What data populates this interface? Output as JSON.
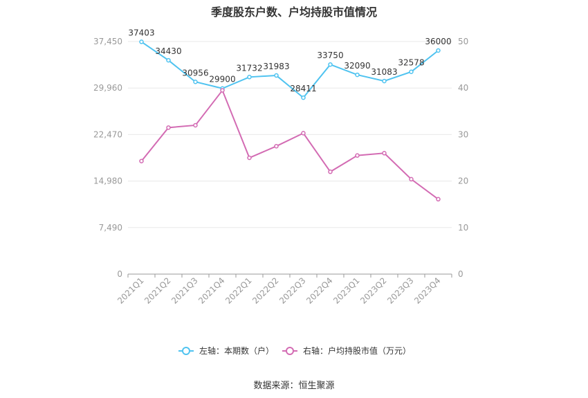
{
  "title": "季度股东户数、户均持股市值情况",
  "source": "数据来源：恒生聚源",
  "colors": {
    "left_series": "#4fc3f0",
    "right_series": "#d36bb3",
    "grid": "#e8e8e8",
    "axis_text": "#999999"
  },
  "chart_data": {
    "type": "line",
    "categories": [
      "2021Q1",
      "2021Q2",
      "2021Q3",
      "2021Q4",
      "2022Q1",
      "2022Q2",
      "2022Q3",
      "2022Q4",
      "2023Q1",
      "2023Q2",
      "2023Q3",
      "2023Q4"
    ],
    "y_left": {
      "ylim": [
        0,
        37450
      ],
      "ticks": [
        0,
        7490,
        14980,
        22470,
        29960,
        37450
      ],
      "tick_labels": [
        "0",
        "7,490",
        "14,980",
        "22,470",
        "29,960",
        "37,450"
      ]
    },
    "y_right": {
      "ylim": [
        0,
        50
      ],
      "ticks": [
        0,
        10,
        20,
        30,
        40,
        50
      ],
      "tick_labels": [
        "0",
        "10",
        "20",
        "30",
        "40",
        "50"
      ]
    },
    "series": [
      {
        "name": "左轴：本期数（户）",
        "axis": "left",
        "values": [
          37403,
          34430,
          30956,
          29900,
          31732,
          31983,
          28411,
          33750,
          32090,
          31083,
          32578,
          36000
        ],
        "labels": [
          "37403",
          "34430",
          "30956",
          "29900",
          "31732",
          "31983",
          "28411",
          "33750",
          "32090",
          "31083",
          "32578",
          "36000"
        ]
      },
      {
        "name": "右轴：户均持股市值（万元）",
        "axis": "right",
        "values": [
          24.3,
          31.5,
          32.0,
          39.5,
          25.0,
          27.5,
          30.3,
          22.0,
          25.5,
          26.0,
          20.4,
          16.1
        ]
      }
    ],
    "grid": true,
    "legend": "bottom-center"
  }
}
